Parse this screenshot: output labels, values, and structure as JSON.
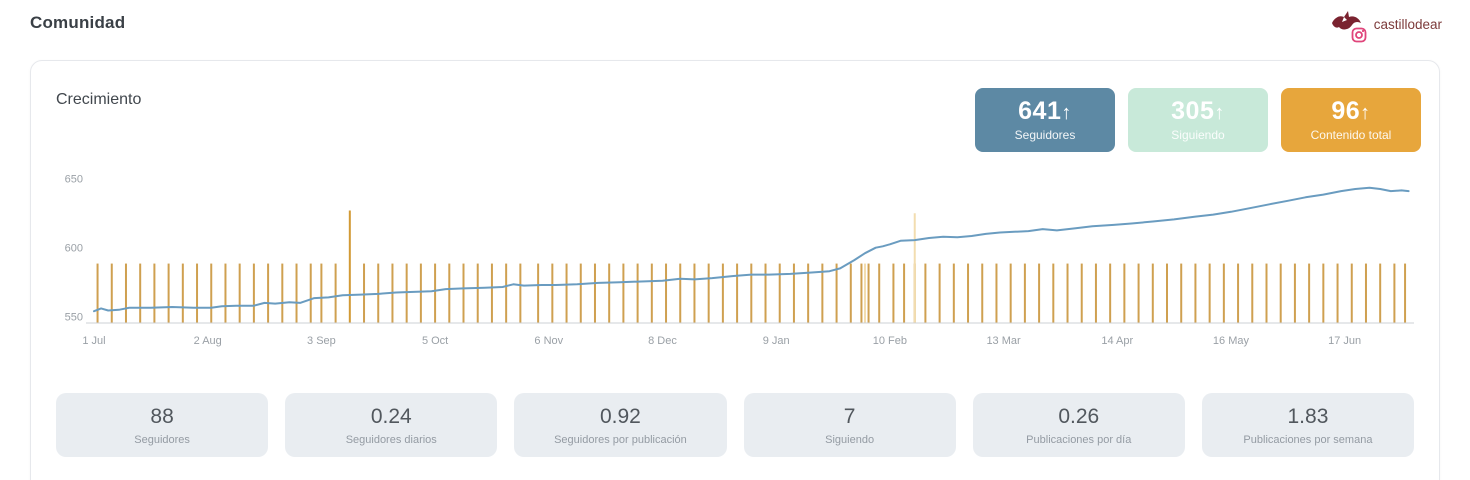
{
  "header": {
    "title": "Comunidad",
    "account": {
      "username": "castillodear",
      "network": "instagram"
    }
  },
  "growth": {
    "title": "Crecimiento",
    "badges": [
      {
        "value": "641",
        "arrow": "↑",
        "label": "Seguidores",
        "bg": "#5d89a4",
        "text": "#ffffff"
      },
      {
        "value": "305",
        "arrow": "↑",
        "label": "Siguiendo",
        "bg": "#c8e9d9",
        "text": "#ffffff"
      },
      {
        "value": "96",
        "arrow": "↑",
        "label": "Contenido total",
        "bg": "#e7a63c",
        "text": "#ffffff"
      }
    ]
  },
  "chart_data": {
    "type": "line",
    "title": "Crecimiento",
    "grid": false,
    "legend": false,
    "ylim": [
      548,
      660
    ],
    "y_ticks": [
      550,
      600,
      650
    ],
    "x_ticks": [
      {
        "day": 0,
        "label": "1 Jul"
      },
      {
        "day": 32,
        "label": "2 Aug"
      },
      {
        "day": 64,
        "label": "3 Sep"
      },
      {
        "day": 96,
        "label": "5 Oct"
      },
      {
        "day": 128,
        "label": "6 Nov"
      },
      {
        "day": 160,
        "label": "8 Dec"
      },
      {
        "day": 192,
        "label": "9 Jan"
      },
      {
        "day": 224,
        "label": "10 Feb"
      },
      {
        "day": 256,
        "label": "13 Mar"
      },
      {
        "day": 288,
        "label": "14 Apr"
      },
      {
        "day": 320,
        "label": "16 May"
      },
      {
        "day": 352,
        "label": "17 Jun"
      }
    ],
    "series": [
      {
        "name": "Seguidores",
        "type": "line",
        "color": "#6a9cc0",
        "points": [
          [
            0,
            554
          ],
          [
            2,
            556
          ],
          [
            4,
            554.5
          ],
          [
            7,
            555
          ],
          [
            10,
            556.5
          ],
          [
            16,
            556.5
          ],
          [
            22,
            557
          ],
          [
            28,
            556.5
          ],
          [
            33,
            556.5
          ],
          [
            36,
            557.5
          ],
          [
            40,
            558
          ],
          [
            45,
            558
          ],
          [
            48,
            560
          ],
          [
            51,
            559.5
          ],
          [
            55,
            560.5
          ],
          [
            58,
            560
          ],
          [
            62,
            563.5
          ],
          [
            66,
            564
          ],
          [
            70,
            565.5
          ],
          [
            75,
            566
          ],
          [
            80,
            566.5
          ],
          [
            85,
            567.5
          ],
          [
            90,
            568
          ],
          [
            95,
            568.5
          ],
          [
            99,
            570
          ],
          [
            104,
            570.5
          ],
          [
            110,
            571
          ],
          [
            115,
            571.5
          ],
          [
            118,
            573.5
          ],
          [
            121,
            572.5
          ],
          [
            126,
            573
          ],
          [
            130,
            573
          ],
          [
            136,
            573.5
          ],
          [
            142,
            574.5
          ],
          [
            148,
            575
          ],
          [
            154,
            575.5
          ],
          [
            160,
            576
          ],
          [
            165,
            577.5
          ],
          [
            169,
            577
          ],
          [
            174,
            578
          ],
          [
            180,
            579.5
          ],
          [
            185,
            580.5
          ],
          [
            190,
            580.5
          ],
          [
            196,
            581
          ],
          [
            202,
            582
          ],
          [
            207,
            583
          ],
          [
            210,
            585
          ],
          [
            212,
            588
          ],
          [
            214,
            591
          ],
          [
            217,
            596
          ],
          [
            220,
            600
          ],
          [
            222,
            601
          ],
          [
            224,
            602.5
          ],
          [
            227,
            605
          ],
          [
            231,
            605.5
          ],
          [
            235,
            607
          ],
          [
            239,
            608
          ],
          [
            243,
            607.5
          ],
          [
            247,
            608.5
          ],
          [
            251,
            610
          ],
          [
            255,
            611
          ],
          [
            259,
            611.5
          ],
          [
            263,
            612
          ],
          [
            267,
            613.5
          ],
          [
            271,
            612.5
          ],
          [
            276,
            614
          ],
          [
            281,
            615.5
          ],
          [
            287,
            616.5
          ],
          [
            292,
            617.5
          ],
          [
            298,
            619
          ],
          [
            304,
            620.5
          ],
          [
            310,
            622.5
          ],
          [
            315,
            624
          ],
          [
            320,
            626
          ],
          [
            326,
            629
          ],
          [
            331,
            631.5
          ],
          [
            336,
            634
          ],
          [
            341,
            636.5
          ],
          [
            346,
            638.5
          ],
          [
            351,
            641
          ],
          [
            355,
            642.5
          ],
          [
            359,
            643.5
          ],
          [
            362,
            642.5
          ],
          [
            365,
            641
          ],
          [
            368,
            641.5
          ],
          [
            370,
            641
          ]
        ]
      },
      {
        "name": "Publicaciones",
        "type": "event-markers",
        "color": "#cfa050",
        "marker_top": 588.5,
        "baseline": 548,
        "days": [
          1,
          5,
          9,
          13,
          17,
          21,
          25,
          29,
          33,
          37,
          41,
          45,
          49,
          53,
          57,
          61,
          64,
          68,
          76,
          80,
          84,
          88,
          92,
          96,
          100,
          104,
          108,
          112,
          116,
          120,
          125,
          129,
          133,
          137,
          141,
          145,
          149,
          153,
          157,
          161,
          165,
          169,
          173,
          177,
          181,
          185,
          189,
          193,
          197,
          201,
          205,
          209,
          213,
          216,
          218,
          221,
          225,
          228,
          231,
          234,
          238,
          242,
          246,
          250,
          254,
          258,
          262,
          266,
          270,
          274,
          278,
          282,
          286,
          290,
          294,
          298,
          302,
          306,
          310,
          314,
          318,
          322,
          326,
          330,
          334,
          338,
          342,
          346,
          350,
          354,
          358,
          362,
          366,
          369
        ],
        "special_markers": [
          {
            "day": 72,
            "value": 627,
            "light": false
          },
          {
            "day": 231,
            "value": 625,
            "light": true
          },
          {
            "day": 217,
            "value": 588.5,
            "light": true
          }
        ]
      }
    ]
  },
  "summary": {
    "cards": [
      {
        "value": "88",
        "label": "Seguidores"
      },
      {
        "value": "0.24",
        "label": "Seguidores diarios"
      },
      {
        "value": "0.92",
        "label": "Seguidores por publicación"
      },
      {
        "value": "7",
        "label": "Siguiendo"
      },
      {
        "value": "0.26",
        "label": "Publicaciones por día"
      },
      {
        "value": "1.83",
        "label": "Publicaciones por semana"
      }
    ]
  }
}
